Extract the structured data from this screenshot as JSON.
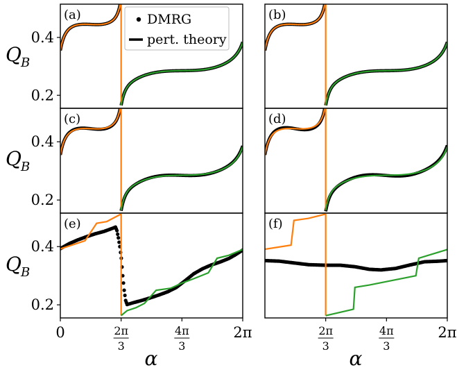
{
  "figure": {
    "ylabel": "Q",
    "ylabel_sub": "B",
    "xlabel": "α",
    "legend": {
      "dmrg_label": "DMRG",
      "pert_label": "pert. theory"
    }
  },
  "colors": {
    "orange": "#ff7f0e",
    "green": "#2ca02c",
    "dmrg": "#000000"
  },
  "chart_data": [
    {
      "id": "a",
      "label": "(a)",
      "type": "line",
      "kind": "match",
      "ylim": [
        0.155,
        0.515
      ],
      "yticks": [
        {
          "label": "0.4",
          "value": 0.4
        },
        {
          "label": "0.2",
          "value": 0.2
        }
      ],
      "x_ticks": [],
      "legend_location": "upper-right"
    },
    {
      "id": "b",
      "label": "(b)",
      "type": "line",
      "kind": "match",
      "ylim": [
        0.155,
        0.515
      ],
      "yticks": [],
      "x_ticks": []
    },
    {
      "id": "c",
      "label": "(c)",
      "type": "line",
      "kind": "match",
      "ylim": [
        0.155,
        0.515
      ],
      "yticks": [
        {
          "label": "0.4",
          "value": 0.4
        },
        {
          "label": "0.2",
          "value": 0.2
        }
      ],
      "x_ticks": []
    },
    {
      "id": "d",
      "label": "(d)",
      "type": "line",
      "kind": "match",
      "ylim": [
        0.155,
        0.515
      ],
      "yticks": [],
      "x_ticks": []
    },
    {
      "id": "e",
      "label": "(e)",
      "type": "line",
      "kind": "steps_dmrg",
      "ylim": [
        0.155,
        0.515
      ],
      "yticks": [
        {
          "label": "0.4",
          "value": 0.4
        },
        {
          "label": "0.2",
          "value": 0.2
        }
      ],
      "x_ticks": [
        {
          "label": "0",
          "value": 0
        },
        {
          "label": "2π/3",
          "num": "2π",
          "den": "3",
          "value": 2.0944
        },
        {
          "label": "4π/3",
          "num": "4π",
          "den": "3",
          "value": 4.1888
        },
        {
          "label": "2π",
          "value": 6.2832
        }
      ],
      "dmrg_points": [
        [
          0,
          0.393
        ],
        [
          0.3,
          0.41
        ],
        [
          0.6,
          0.423
        ],
        [
          0.9,
          0.434
        ],
        [
          1.2,
          0.444
        ],
        [
          1.5,
          0.452
        ],
        [
          1.8,
          0.463
        ],
        [
          1.9,
          0.467
        ],
        [
          1.95,
          0.455
        ],
        [
          2.0,
          0.43
        ],
        [
          2.05,
          0.4
        ],
        [
          2.1,
          0.36
        ],
        [
          2.15,
          0.3
        ],
        [
          2.2,
          0.25
        ],
        [
          2.25,
          0.215
        ],
        [
          2.3,
          0.201
        ],
        [
          2.5,
          0.207
        ],
        [
          2.8,
          0.215
        ],
        [
          3.1,
          0.224
        ],
        [
          3.4,
          0.234
        ],
        [
          3.7,
          0.245
        ],
        [
          4.0,
          0.26
        ],
        [
          4.3,
          0.283
        ],
        [
          4.6,
          0.307
        ],
        [
          4.9,
          0.324
        ],
        [
          5.2,
          0.337
        ],
        [
          5.5,
          0.347
        ],
        [
          5.8,
          0.359
        ],
        [
          6.0,
          0.37
        ],
        [
          6.2832,
          0.388
        ]
      ],
      "orange_points": [
        [
          0,
          0.392
        ],
        [
          0.85,
          0.42
        ],
        [
          1.25,
          0.48
        ],
        [
          1.6,
          0.486
        ],
        [
          2.0944,
          0.512
        ]
      ],
      "green_points": [
        [
          2.0944,
          0.163
        ],
        [
          2.3,
          0.18
        ],
        [
          2.6,
          0.19
        ],
        [
          2.9,
          0.205
        ],
        [
          3.3,
          0.25
        ],
        [
          3.8,
          0.257
        ],
        [
          4.2,
          0.275
        ],
        [
          4.6,
          0.29
        ],
        [
          5.1,
          0.31
        ],
        [
          5.4,
          0.36
        ],
        [
          5.8,
          0.37
        ],
        [
          6.2832,
          0.39
        ]
      ]
    },
    {
      "id": "f",
      "label": "(f)",
      "type": "line",
      "kind": "steps_dmrg",
      "ylim": [
        0.155,
        0.515
      ],
      "yticks": [],
      "x_ticks": [
        {
          "label": "2π/3",
          "num": "2π",
          "den": "3",
          "value": 2.0944
        },
        {
          "label": "4π/3",
          "num": "4π",
          "den": "3",
          "value": 4.1888
        },
        {
          "label": "2π",
          "value": 6.2832
        }
      ],
      "dmrg_points": [
        [
          0,
          0.352
        ],
        [
          0.5,
          0.35
        ],
        [
          1.0,
          0.344
        ],
        [
          1.5,
          0.338
        ],
        [
          2.0944,
          0.336
        ],
        [
          2.6,
          0.336
        ],
        [
          3.1,
          0.331
        ],
        [
          3.6,
          0.322
        ],
        [
          4.0,
          0.32
        ],
        [
          4.5,
          0.325
        ],
        [
          5.0,
          0.337
        ],
        [
          5.5,
          0.348
        ],
        [
          6.0,
          0.35
        ],
        [
          6.2832,
          0.352
        ]
      ],
      "orange_points": [
        [
          0,
          0.391
        ],
        [
          0.9,
          0.405
        ],
        [
          1.0,
          0.49
        ],
        [
          1.5,
          0.497
        ],
        [
          2.0944,
          0.512
        ]
      ],
      "green_points": [
        [
          2.0944,
          0.163
        ],
        [
          3.05,
          0.185
        ],
        [
          3.1,
          0.26
        ],
        [
          3.6,
          0.268
        ],
        [
          5.2,
          0.3
        ],
        [
          5.3,
          0.36
        ],
        [
          6.2832,
          0.39
        ]
      ]
    }
  ]
}
